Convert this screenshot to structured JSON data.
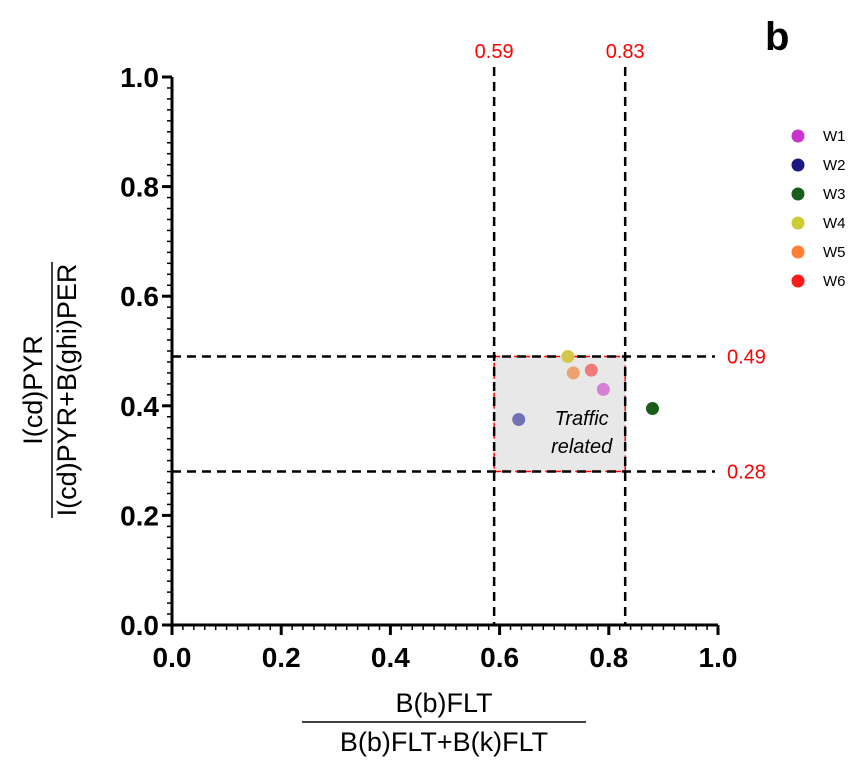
{
  "chart_data": {
    "type": "scatter",
    "panel_label": "b",
    "xlabel": {
      "numerator": "B(b)FLT",
      "denominator": "B(b)FLT+B(k)FLT"
    },
    "ylabel": {
      "numerator": "I(cd)PYR",
      "denominator": "I(cd)PYR+B(ghi)PER"
    },
    "xlim": [
      0.0,
      1.0
    ],
    "ylim": [
      0.0,
      1.0
    ],
    "x_ticks": [
      "0.0",
      "0.2",
      "0.4",
      "0.6",
      "0.8",
      "1.0"
    ],
    "y_ticks": [
      "0.0",
      "0.2",
      "0.4",
      "0.6",
      "0.8",
      "1.0"
    ],
    "grid": false,
    "legend_position": "top-right",
    "reference_lines": {
      "vertical": [
        {
          "value": 0.59,
          "label": "0.59"
        },
        {
          "value": 0.83,
          "label": "0.83"
        }
      ],
      "horizontal": [
        {
          "value": 0.49,
          "label": "0.49"
        },
        {
          "value": 0.28,
          "label": "0.28"
        }
      ]
    },
    "region": {
      "x": [
        0.59,
        0.83
      ],
      "y": [
        0.28,
        0.49
      ],
      "label_lines": [
        "Traffic",
        "related"
      ],
      "fill": "#e8e8e8",
      "border": "#ff0000"
    },
    "series": [
      {
        "name": "W1",
        "color": "#cc33cc",
        "point_color": "#d77ed7",
        "x": 0.79,
        "y": 0.43
      },
      {
        "name": "W2",
        "color": "#1a1a80",
        "point_color": "#7072b4",
        "x": 0.635,
        "y": 0.375
      },
      {
        "name": "W3",
        "color": "#1a5c1a",
        "point_color": "#1a5c1a",
        "x": 0.88,
        "y": 0.395
      },
      {
        "name": "W4",
        "color": "#cccc33",
        "point_color": "#d4c84a",
        "x": 0.725,
        "y": 0.49
      },
      {
        "name": "W5",
        "color": "#ff7f33",
        "point_color": "#eea16e",
        "x": 0.735,
        "y": 0.46
      },
      {
        "name": "W6",
        "color": "#ff1a1a",
        "point_color": "#f07a7a",
        "x": 0.768,
        "y": 0.465
      }
    ]
  }
}
